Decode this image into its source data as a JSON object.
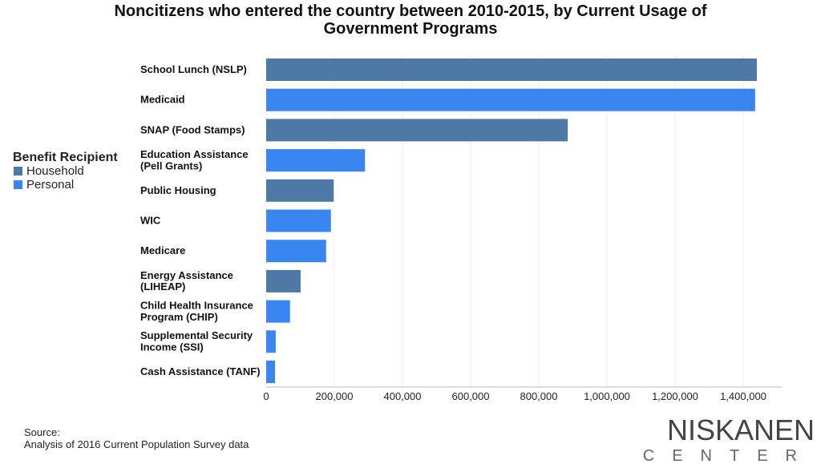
{
  "chart_data": {
    "type": "bar",
    "orientation": "horizontal",
    "title": "Noncitizens who entered the country between 2010-2015, by Current Usage of Government Programs",
    "categories": [
      "School Lunch (NSLP)",
      "Medicaid",
      "SNAP (Food Stamps)",
      "Education Assistance\n(Pell Grants)",
      "Public Housing",
      "WIC",
      "Medicare",
      "Energy Assistance\n(LIHEAP)",
      "Child Health Insurance\nProgram (CHIP)",
      "Supplemental Security\nIncome (SSI)",
      "Cash Assistance (TANF)"
    ],
    "legend_title": "Benefit Recipient",
    "legend_position": "left",
    "series": [
      {
        "name": "Household",
        "color": "#4e79a7",
        "values": [
          1440000,
          null,
          885000,
          null,
          198000,
          null,
          null,
          101000,
          null,
          null,
          null
        ]
      },
      {
        "name": "Personal",
        "color": "#3a86f0",
        "values": [
          null,
          1435000,
          null,
          290000,
          null,
          190000,
          176000,
          null,
          70000,
          28000,
          26000
        ]
      }
    ],
    "xlim": [
      0,
      1500000
    ],
    "xticks": [
      0,
      {
        "value": 200000,
        "label": "200,000"
      },
      {
        "value": 400000,
        "label": "400,000"
      },
      {
        "value": 600000,
        "label": "600,000"
      },
      {
        "value": 800000,
        "label": "800,000"
      },
      {
        "value": 1000000,
        "label": "1,000,000"
      },
      {
        "value": 1200000,
        "label": "1,200,000"
      },
      {
        "value": 1400000,
        "label": "1,400,000"
      }
    ],
    "grid": true,
    "source_label": "Source:",
    "source": "Analysis of 2016 Current Population Survey data"
  },
  "logo": {
    "line1": "NISKANEN",
    "line2": "CENTER"
  }
}
